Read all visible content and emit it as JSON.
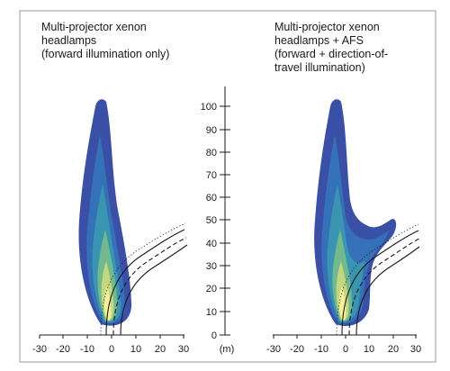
{
  "left_panel": {
    "title_lines": [
      "Multi-projector xenon",
      "headlamps",
      "(forward illumination only)"
    ]
  },
  "right_panel": {
    "title_lines": [
      "Multi-projector xenon",
      "headlamps + AFS",
      "(forward + direction-of-",
      "travel illumination)"
    ]
  },
  "x_axis": {
    "ticks": [
      "-30",
      "-20",
      "-10",
      "0",
      "10",
      "20",
      "30"
    ]
  },
  "y_axis": {
    "ticks": [
      "0",
      "10",
      "20",
      "30",
      "40",
      "50",
      "60",
      "70",
      "80",
      "90",
      "100"
    ],
    "unit_label": "(m)"
  },
  "colors": {
    "outer": "#3a4fa6",
    "mid_blue": "#3571b8",
    "teal": "#3a96b0",
    "green": "#72b98e",
    "yellow_green": "#c3d77f",
    "core": "#f4f09c",
    "frame": "#9a9a9a"
  }
}
